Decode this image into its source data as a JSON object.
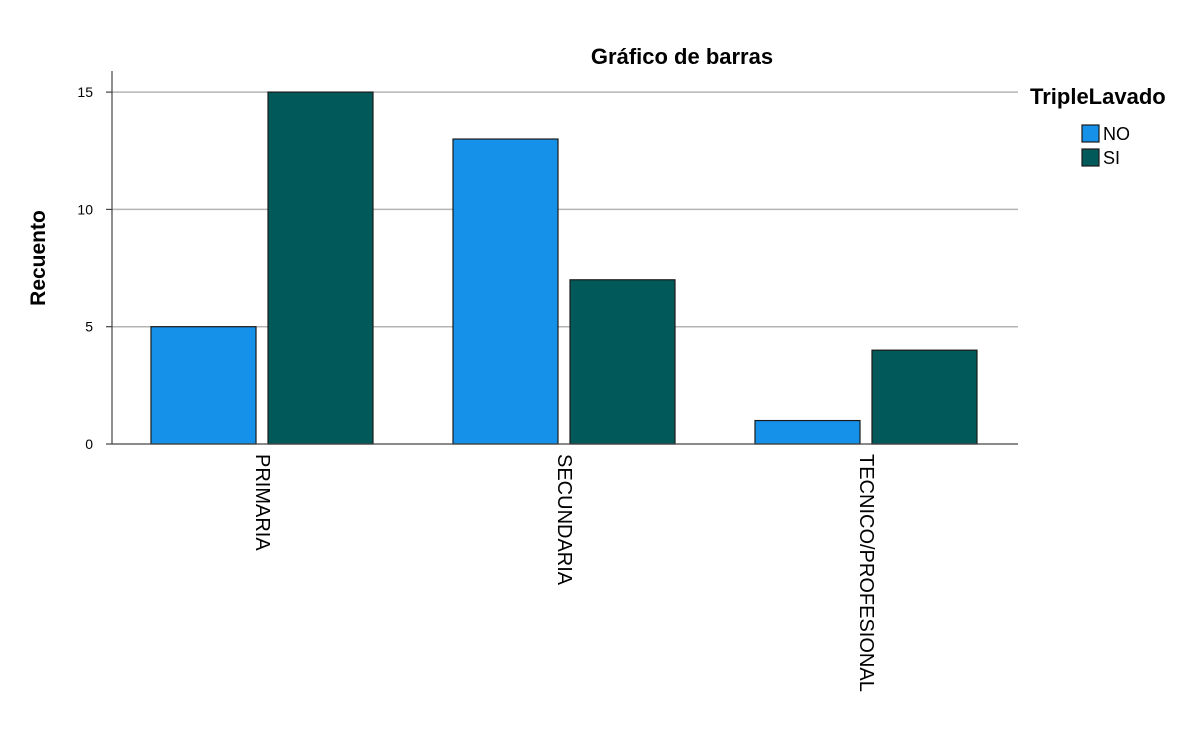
{
  "chart_data": {
    "type": "bar",
    "title": "Gráfico de barras",
    "xlabel": "",
    "ylabel": "Recuento",
    "categories": [
      "PRIMARIA",
      "SECUNDARIA",
      "TECNICO/PROFESIONAL"
    ],
    "series": [
      {
        "name": "NO",
        "values": [
          5,
          13,
          1
        ],
        "color": "#1591EA"
      },
      {
        "name": "SI",
        "values": [
          15,
          7,
          4
        ],
        "color": "#02595A"
      }
    ],
    "ylim": [
      0,
      15.9
    ],
    "yticks": [
      0,
      5,
      10,
      15
    ],
    "grid": true,
    "legend": {
      "title": "TripleLavado",
      "position": "top-right"
    }
  }
}
